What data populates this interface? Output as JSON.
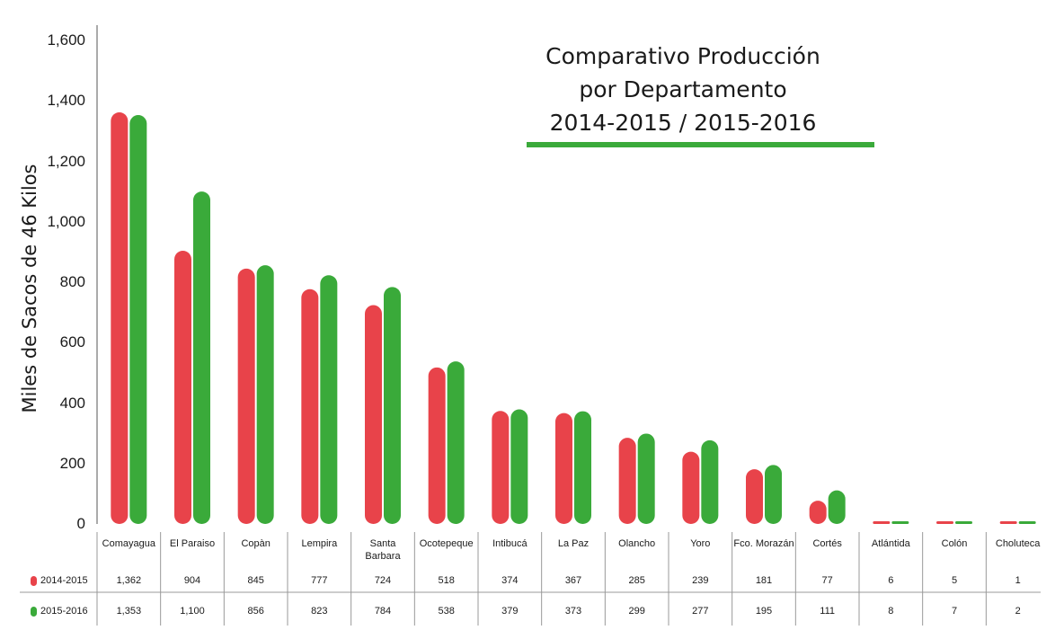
{
  "chart_data": {
    "type": "bar",
    "title_lines": [
      "Comparativo Producción",
      "por Departamento",
      "2014-2015 / 2015-2016"
    ],
    "ylabel": "Miles de Sacos de 46 Kilos",
    "xlabel": "",
    "ylim": [
      0,
      1600
    ],
    "yticks": [
      "1,600",
      "1,400",
      "1,200",
      "1,000",
      "800",
      "600",
      "400",
      "200",
      "0"
    ],
    "ytick_values": [
      1600,
      1400,
      1200,
      1000,
      800,
      600,
      400,
      200,
      0
    ],
    "categories": [
      "Comayagua",
      "El Paraiso",
      "Copàn",
      "Lempira",
      "Santa Barbara",
      "Ocotepeque",
      "Intibucá",
      "La Paz",
      "Olancho",
      "Yoro",
      "Fco. Morazán",
      "Cortés",
      "Atlántida",
      "Colón",
      "Choluteca"
    ],
    "series": [
      {
        "name": "2014-2015",
        "color": "#e8434a",
        "values": [
          1362,
          904,
          845,
          777,
          724,
          518,
          374,
          367,
          285,
          239,
          181,
          77,
          6,
          5,
          1
        ],
        "labels": [
          "1,362",
          "904",
          "845",
          "777",
          "724",
          "518",
          "374",
          "367",
          "285",
          "239",
          "181",
          "77",
          "6",
          "5",
          "1"
        ]
      },
      {
        "name": "2015-2016",
        "color": "#3aaa3a",
        "values": [
          1353,
          1100,
          856,
          823,
          784,
          538,
          379,
          373,
          299,
          277,
          195,
          111,
          8,
          7,
          2
        ],
        "labels": [
          "1,353",
          "1,100",
          "856",
          "823",
          "784",
          "538",
          "379",
          "373",
          "299",
          "277",
          "195",
          "111",
          "8",
          "7",
          "2"
        ]
      }
    ],
    "grid": false,
    "legend": "bottom-left-table"
  },
  "colors": {
    "title_rule": "#3aaa3a",
    "axis": "#555555",
    "table_rule": "#999999"
  }
}
